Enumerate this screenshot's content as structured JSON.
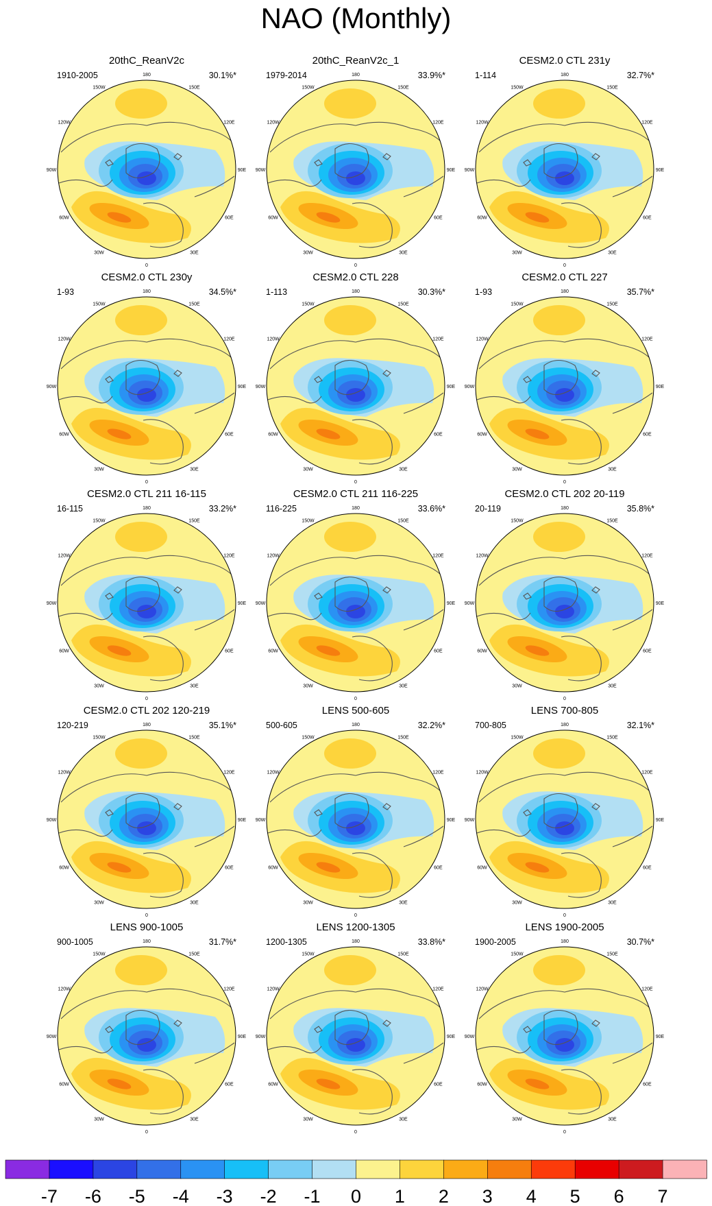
{
  "title": "NAO (Monthly)",
  "chart_data": {
    "type": "polar-map-panels",
    "title": "NAO (Monthly)",
    "units_note": "",
    "lon_labels": [
      "180",
      "150E",
      "120E",
      "90E",
      "60E",
      "30E",
      "0",
      "30W",
      "60W",
      "90W",
      "120W",
      "150W"
    ],
    "colorbar": {
      "ticks": [
        "-7",
        "-6",
        "-5",
        "-4",
        "-3",
        "-2",
        "-1",
        "0",
        "1",
        "2",
        "3",
        "4",
        "5",
        "6",
        "7"
      ],
      "colors": [
        "#8a2be2",
        "#1a0fff",
        "#2b45e3",
        "#3370e8",
        "#2a92f3",
        "#17bff7",
        "#78cdf4",
        "#b2dff3",
        "#fcf28e",
        "#fdd43c",
        "#fbab16",
        "#f67e0e",
        "#fc3b0a",
        "#e80000",
        "#cd1b1f",
        "#fbb2b6"
      ]
    },
    "panels": [
      {
        "name": "20thC_ReanV2c",
        "period": "1910-2005",
        "variance": "30.1%*"
      },
      {
        "name": "20thC_ReanV2c_1",
        "period": "1979-2014",
        "variance": "33.9%*"
      },
      {
        "name": "CESM2.0 CTL 231y",
        "period": "1-114",
        "variance": "32.7%*"
      },
      {
        "name": "CESM2.0 CTL 230y",
        "period": "1-93",
        "variance": "34.5%*"
      },
      {
        "name": "CESM2.0 CTL 228",
        "period": "1-113",
        "variance": "30.3%*"
      },
      {
        "name": "CESM2.0 CTL 227",
        "period": "1-93",
        "variance": "35.7%*"
      },
      {
        "name": "CESM2.0 CTL 211 16-115",
        "period": "16-115",
        "variance": "33.2%*"
      },
      {
        "name": "CESM2.0 CTL 211 116-225",
        "period": "116-225",
        "variance": "33.6%*"
      },
      {
        "name": "CESM2.0 CTL 202 20-119",
        "period": "20-119",
        "variance": "35.8%*"
      },
      {
        "name": "CESM2.0 CTL 202 120-219",
        "period": "120-219",
        "variance": "35.1%*"
      },
      {
        "name": "LENS 500-605",
        "period": "500-605",
        "variance": "32.2%*"
      },
      {
        "name": "LENS 700-805",
        "period": "700-805",
        "variance": "32.1%*"
      },
      {
        "name": "LENS 900-1005",
        "period": "900-1005",
        "variance": "31.7%*"
      },
      {
        "name": "LENS 1200-1305",
        "period": "1200-1305",
        "variance": "33.8%*"
      },
      {
        "name": "LENS 1900-2005",
        "period": "1900-2005",
        "variance": "30.7%*"
      }
    ]
  }
}
